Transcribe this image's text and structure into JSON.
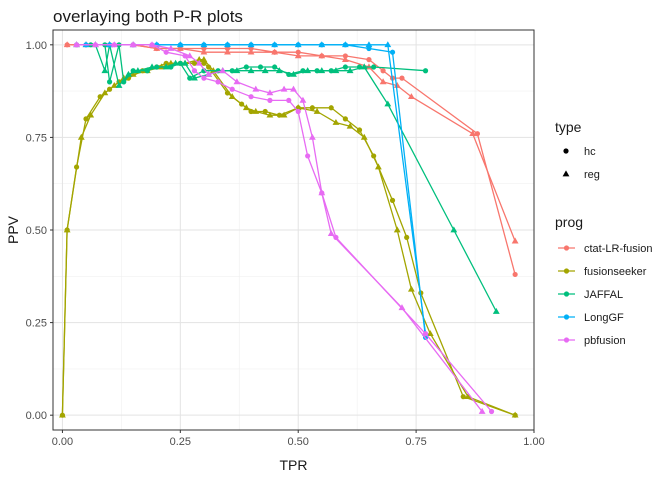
{
  "chart_data": {
    "type": "line",
    "title": "overlaying both P-R plots",
    "xlabel": "TPR",
    "ylabel": "PPV",
    "xlim": [
      -0.02,
      1.0
    ],
    "ylim": [
      -0.04,
      1.04
    ],
    "x_ticks": [
      0.0,
      0.25,
      0.5,
      0.75,
      1.0
    ],
    "x_tick_labels": [
      "0.00",
      "0.25",
      "0.50",
      "0.75",
      "1.00"
    ],
    "y_ticks": [
      0.0,
      0.25,
      0.5,
      0.75,
      1.0
    ],
    "y_tick_labels": [
      "0.00",
      "0.25",
      "0.50",
      "0.75",
      "1.00"
    ],
    "grid": true,
    "legend_position": "right",
    "shape_legend": {
      "title": "type",
      "entries": [
        {
          "label": "hc",
          "shape": "circle"
        },
        {
          "label": "reg",
          "shape": "triangle"
        }
      ]
    },
    "color_legend": {
      "title": "prog",
      "entries": [
        "ctat-LR-fusion",
        "fusionseeker",
        "JAFFAL",
        "LongGF",
        "pbfusion"
      ]
    },
    "series": [
      {
        "name": "ctat-LR-fusion",
        "type": "hc",
        "color": "#F8766D",
        "x": [
          0.01,
          0.05,
          0.1,
          0.15,
          0.2,
          0.25,
          0.3,
          0.35,
          0.4,
          0.45,
          0.5,
          0.55,
          0.6,
          0.65,
          0.68,
          0.7,
          0.72,
          0.88,
          0.96
        ],
        "y": [
          1.0,
          1.0,
          1.0,
          1.0,
          0.99,
          0.99,
          0.99,
          0.99,
          0.99,
          0.98,
          0.98,
          0.97,
          0.97,
          0.96,
          0.93,
          0.91,
          0.91,
          0.76,
          0.38
        ]
      },
      {
        "name": "ctat-LR-fusion",
        "type": "reg",
        "color": "#F8766D",
        "x": [
          0.01,
          0.05,
          0.1,
          0.15,
          0.2,
          0.25,
          0.3,
          0.35,
          0.4,
          0.45,
          0.5,
          0.55,
          0.6,
          0.65,
          0.68,
          0.71,
          0.74,
          0.87,
          0.96
        ],
        "y": [
          1.0,
          1.0,
          1.0,
          1.0,
          0.99,
          0.99,
          0.98,
          0.98,
          0.98,
          0.98,
          0.97,
          0.97,
          0.96,
          0.94,
          0.9,
          0.89,
          0.86,
          0.76,
          0.47
        ]
      },
      {
        "name": "fusionseeker",
        "type": "hc",
        "color": "#A3A500",
        "x": [
          0.0,
          0.01,
          0.03,
          0.05,
          0.08,
          0.1,
          0.12,
          0.14,
          0.17,
          0.2,
          0.22,
          0.25,
          0.28,
          0.3,
          0.31,
          0.35,
          0.38,
          0.4,
          0.43,
          0.46,
          0.5,
          0.53,
          0.57,
          0.6,
          0.63,
          0.66,
          0.7,
          0.73,
          0.76,
          0.85,
          0.96
        ],
        "y": [
          0.0,
          0.5,
          0.67,
          0.8,
          0.86,
          0.88,
          0.9,
          0.91,
          0.93,
          0.94,
          0.95,
          0.95,
          0.95,
          0.95,
          0.94,
          0.87,
          0.84,
          0.82,
          0.82,
          0.81,
          0.83,
          0.83,
          0.83,
          0.8,
          0.77,
          0.7,
          0.58,
          0.48,
          0.33,
          0.05,
          0.0
        ]
      },
      {
        "name": "fusionseeker",
        "type": "reg",
        "color": "#A3A500",
        "x": [
          0.0,
          0.01,
          0.04,
          0.06,
          0.09,
          0.11,
          0.13,
          0.15,
          0.18,
          0.21,
          0.23,
          0.26,
          0.29,
          0.3,
          0.32,
          0.36,
          0.39,
          0.41,
          0.44,
          0.47,
          0.5,
          0.54,
          0.58,
          0.61,
          0.64,
          0.67,
          0.71,
          0.74,
          0.78,
          0.86,
          0.96
        ],
        "y": [
          0.0,
          0.5,
          0.75,
          0.81,
          0.87,
          0.89,
          0.91,
          0.92,
          0.93,
          0.94,
          0.95,
          0.95,
          0.96,
          0.96,
          0.93,
          0.86,
          0.83,
          0.82,
          0.81,
          0.81,
          0.83,
          0.82,
          0.79,
          0.78,
          0.75,
          0.67,
          0.5,
          0.34,
          0.22,
          0.05,
          0.0
        ]
      },
      {
        "name": "JAFFAL",
        "type": "hc",
        "color": "#00BF7D",
        "x": [
          0.03,
          0.06,
          0.09,
          0.1,
          0.12,
          0.13,
          0.15,
          0.18,
          0.2,
          0.23,
          0.25,
          0.27,
          0.3,
          0.33,
          0.36,
          0.39,
          0.42,
          0.45,
          0.48,
          0.51,
          0.54,
          0.57,
          0.6,
          0.63,
          0.66,
          0.77
        ],
        "y": [
          1.0,
          1.0,
          1.0,
          0.9,
          1.0,
          0.9,
          0.93,
          0.93,
          0.94,
          0.94,
          0.95,
          0.91,
          0.93,
          0.93,
          0.93,
          0.94,
          0.94,
          0.94,
          0.92,
          0.93,
          0.93,
          0.93,
          0.94,
          0.94,
          0.94,
          0.93
        ]
      },
      {
        "name": "JAFFAL",
        "type": "reg",
        "color": "#00BF7D",
        "x": [
          0.03,
          0.07,
          0.09,
          0.1,
          0.12,
          0.14,
          0.16,
          0.19,
          0.22,
          0.24,
          0.26,
          0.28,
          0.31,
          0.34,
          0.37,
          0.4,
          0.43,
          0.46,
          0.49,
          0.52,
          0.55,
          0.58,
          0.61,
          0.64,
          0.69,
          0.83,
          0.92
        ],
        "y": [
          1.0,
          1.0,
          0.93,
          1.0,
          0.89,
          0.92,
          0.93,
          0.94,
          0.94,
          0.95,
          0.95,
          0.91,
          0.92,
          0.93,
          0.93,
          0.93,
          0.93,
          0.93,
          0.92,
          0.93,
          0.93,
          0.93,
          0.93,
          0.94,
          0.84,
          0.5,
          0.28
        ]
      },
      {
        "name": "LongGF",
        "type": "hc",
        "color": "#00B0F6",
        "x": [
          0.05,
          0.1,
          0.15,
          0.2,
          0.25,
          0.3,
          0.35,
          0.4,
          0.45,
          0.5,
          0.55,
          0.6,
          0.65,
          0.7,
          0.77
        ],
        "y": [
          1.0,
          1.0,
          1.0,
          1.0,
          1.0,
          1.0,
          1.0,
          1.0,
          1.0,
          1.0,
          1.0,
          1.0,
          0.99,
          0.98,
          0.21
        ]
      },
      {
        "name": "LongGF",
        "type": "reg",
        "color": "#00B0F6",
        "x": [
          0.05,
          0.1,
          0.15,
          0.2,
          0.25,
          0.3,
          0.35,
          0.4,
          0.45,
          0.5,
          0.55,
          0.6,
          0.65,
          0.69,
          0.77
        ],
        "y": [
          1.0,
          1.0,
          1.0,
          1.0,
          1.0,
          1.0,
          1.0,
          1.0,
          1.0,
          1.0,
          1.0,
          1.0,
          1.0,
          1.0,
          0.22
        ]
      },
      {
        "name": "pbfusion",
        "type": "hc",
        "color": "#E76BF3",
        "x": [
          0.03,
          0.07,
          0.11,
          0.15,
          0.19,
          0.22,
          0.26,
          0.28,
          0.3,
          0.33,
          0.36,
          0.4,
          0.44,
          0.48,
          0.5,
          0.52,
          0.55,
          0.58,
          0.77,
          0.91
        ],
        "y": [
          1.0,
          1.0,
          1.0,
          1.0,
          1.0,
          0.98,
          0.97,
          0.93,
          0.91,
          0.9,
          0.88,
          0.86,
          0.85,
          0.85,
          0.82,
          0.7,
          0.6,
          0.48,
          0.22,
          0.01
        ]
      },
      {
        "name": "pbfusion",
        "type": "reg",
        "color": "#E76BF3",
        "x": [
          0.03,
          0.07,
          0.11,
          0.15,
          0.19,
          0.23,
          0.27,
          0.29,
          0.31,
          0.34,
          0.37,
          0.41,
          0.44,
          0.47,
          0.49,
          0.51,
          0.53,
          0.55,
          0.57,
          0.72,
          0.89
        ],
        "y": [
          1.0,
          1.0,
          1.0,
          1.0,
          1.0,
          0.99,
          0.97,
          0.95,
          0.92,
          0.93,
          0.9,
          0.88,
          0.87,
          0.88,
          0.88,
          0.85,
          0.75,
          0.6,
          0.49,
          0.29,
          0.01
        ]
      }
    ]
  }
}
